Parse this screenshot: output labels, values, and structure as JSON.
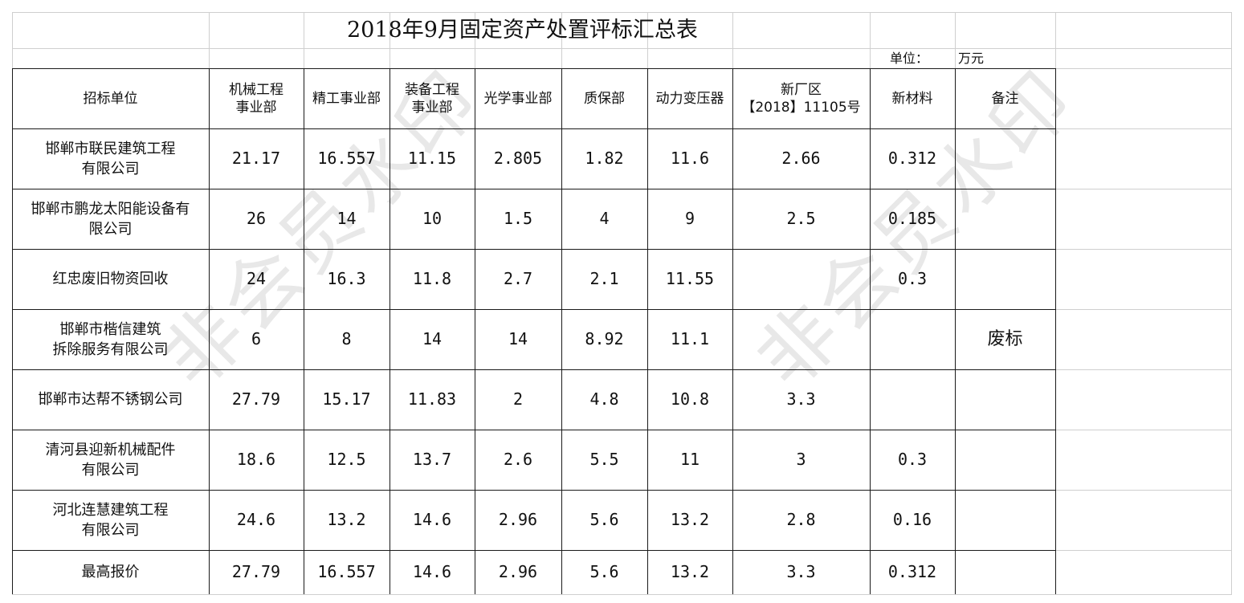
{
  "title": "2018年9月固定资产处置评标汇总表",
  "unit_label": "单位：",
  "unit_value": "万元",
  "watermark": "非会员水印",
  "headers": [
    "招标单位",
    "机械工程\n事业部",
    "精工事业部",
    "装备工程\n事业部",
    "光学事业部",
    "质保部",
    "动力变压器",
    "新厂区\n【2018】11105号",
    "新材料",
    "备注"
  ],
  "rows": [
    [
      "邯郸市联民建筑工程\n有限公司",
      "21.17",
      "16.557",
      "11.15",
      "2.805",
      "1.82",
      "11.6",
      "2.66",
      "0.312",
      ""
    ],
    [
      "邯郸市鹏龙太阳能设备有\n限公司",
      "26",
      "14",
      "10",
      "1.5",
      "4",
      "9",
      "2.5",
      "0.185",
      ""
    ],
    [
      "红忠废旧物资回收",
      "24",
      "16.3",
      "11.8",
      "2.7",
      "2.1",
      "11.55",
      "",
      "0.3",
      ""
    ],
    [
      "邯郸市楷信建筑\n拆除服务有限公司",
      "6",
      "8",
      "14",
      "14",
      "8.92",
      "11.1",
      "",
      "",
      "废标"
    ],
    [
      "邯郸市达帮不锈钢公司",
      "27.79",
      "15.17",
      "11.83",
      "2",
      "4.8",
      "10.8",
      "3.3",
      "",
      ""
    ],
    [
      "清河县迎新机械配件\n有限公司",
      "18.6",
      "12.5",
      "13.7",
      "2.6",
      "5.5",
      "11",
      "3",
      "0.3",
      ""
    ],
    [
      "河北连慧建筑工程\n有限公司",
      "24.6",
      "13.2",
      "14.6",
      "2.96",
      "5.6",
      "13.2",
      "2.8",
      "0.16",
      ""
    ],
    [
      "最高报价",
      "27.79",
      "16.557",
      "14.6",
      "2.96",
      "5.6",
      "13.2",
      "3.3",
      "0.312",
      ""
    ]
  ]
}
